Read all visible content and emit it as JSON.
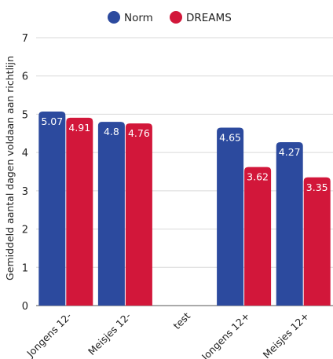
{
  "chart_data": {
    "type": "bar",
    "categories": [
      "Jongens 12-",
      "Meisjes 12-",
      "test",
      "Jongens 12+",
      "Meisjes 12+"
    ],
    "series": [
      {
        "name": "Norm",
        "color": "#2c4a9e",
        "values": [
          5.07,
          4.8,
          null,
          4.65,
          4.27
        ]
      },
      {
        "name": "DREAMS",
        "color": "#d2173a",
        "values": [
          4.91,
          4.76,
          null,
          3.62,
          3.35
        ]
      }
    ],
    "value_labels": [
      [
        "5.07",
        "4.8",
        "",
        "4.65",
        "4.27"
      ],
      [
        "4.91",
        "4.76",
        "",
        "3.62",
        "3.35"
      ]
    ],
    "ylabel": "Gemiddeld aantal dagen voldaan aan richtlijn",
    "ylim": [
      0,
      7
    ],
    "yticks": [
      "0",
      "1",
      "2",
      "3",
      "4",
      "5",
      "6",
      "7"
    ],
    "grid": true,
    "legend_position": "top-center"
  }
}
